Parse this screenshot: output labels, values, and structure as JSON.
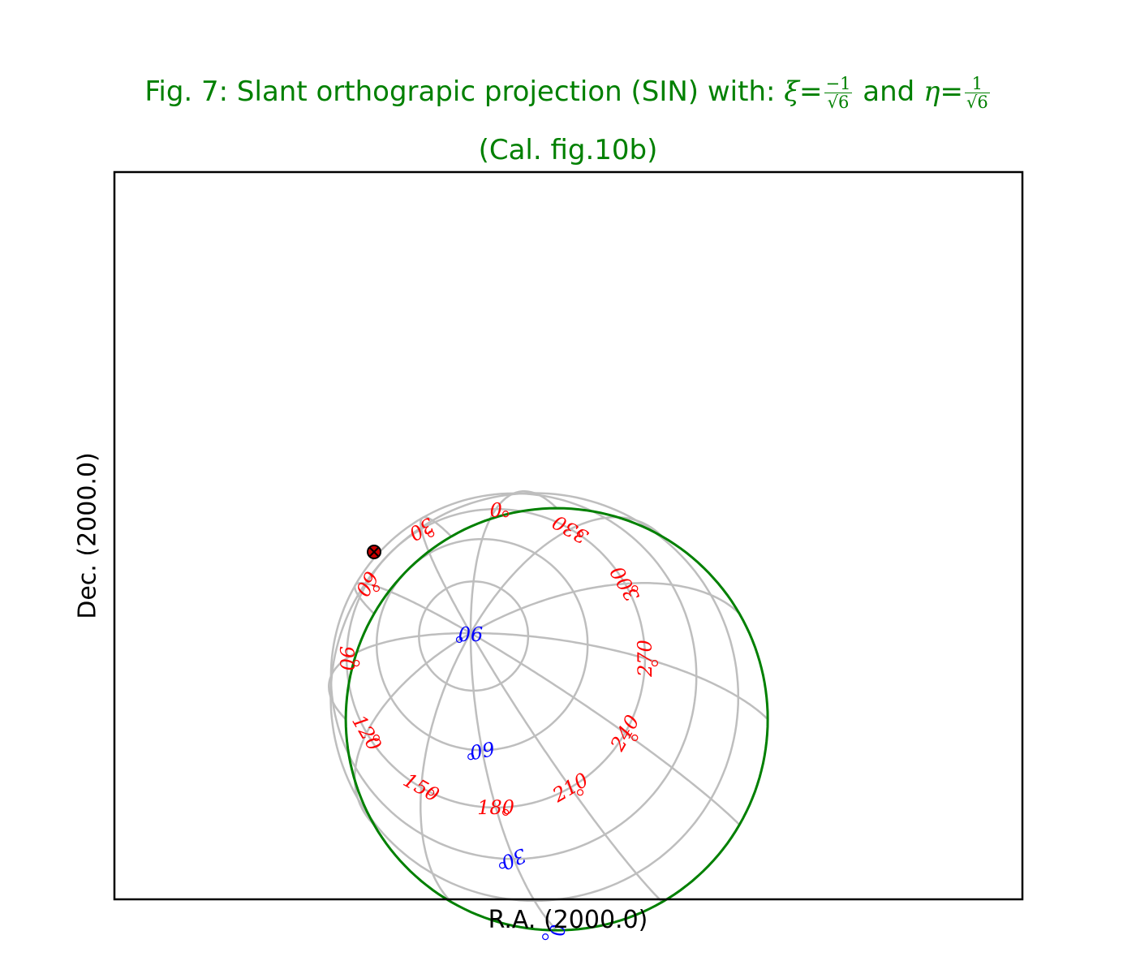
{
  "title": {
    "line1_text": "Fig. 7: Slant orthograpic projection (SIN) with:",
    "xi_symbol": "ξ",
    "xi_num": "−1",
    "xi_den": "√6",
    "and_text": "and",
    "eta_symbol": "η",
    "eta_num": "1",
    "eta_den": "√6",
    "line2": "(Cal. fig.10b)"
  },
  "axes": {
    "xlabel": "R.A. (2000.0)",
    "ylabel": "Dec. (2000.0)"
  },
  "colors": {
    "title": "#008000",
    "boundary": "#008000",
    "graticule": "#bebebe",
    "dec_labels": "#0000ff",
    "ra_labels": "#ff0000",
    "marker_fill": "#cc0000"
  },
  "projection": {
    "type": "SIN",
    "xi": -0.4082,
    "eta": 0.4082
  },
  "dec_labels": [
    "0",
    "30",
    "60",
    "90"
  ],
  "ra_labels": [
    "180",
    "210",
    "240",
    "270",
    "300",
    "330",
    "0",
    "30",
    "60",
    "90",
    "120",
    "150"
  ],
  "marker": {
    "symbol": "circle-cross"
  }
}
